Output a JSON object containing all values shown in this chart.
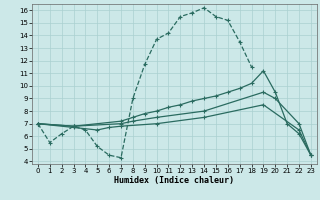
{
  "xlabel": "Humidex (Indice chaleur)",
  "bg_color": "#cce8e8",
  "line_color": "#2a6b60",
  "grid_color": "#aad0d0",
  "xlim": [
    -0.5,
    23.5
  ],
  "ylim": [
    3.8,
    16.5
  ],
  "xticks": [
    0,
    1,
    2,
    3,
    4,
    5,
    6,
    7,
    8,
    9,
    10,
    11,
    12,
    13,
    14,
    15,
    16,
    17,
    18,
    19,
    20,
    21,
    22,
    23
  ],
  "yticks": [
    4,
    5,
    6,
    7,
    8,
    9,
    10,
    11,
    12,
    13,
    14,
    15,
    16
  ],
  "line1_x": [
    0,
    1,
    2,
    3,
    4,
    5,
    6,
    7,
    8,
    9,
    10,
    11,
    12,
    13,
    14,
    15,
    16,
    17,
    18
  ],
  "line1_y": [
    7.0,
    5.5,
    6.2,
    6.8,
    6.5,
    5.2,
    4.5,
    4.3,
    9.0,
    11.7,
    13.7,
    14.2,
    15.5,
    15.8,
    16.2,
    15.5,
    15.2,
    13.5,
    11.5
  ],
  "line2_x": [
    0,
    3,
    7,
    8,
    9,
    10,
    11,
    12,
    13,
    14,
    15,
    16,
    17,
    18,
    19,
    20,
    21,
    22,
    23
  ],
  "line2_y": [
    7.0,
    6.8,
    7.2,
    7.5,
    7.8,
    8.0,
    8.3,
    8.5,
    8.8,
    9.0,
    9.2,
    9.5,
    9.8,
    10.2,
    11.2,
    9.5,
    7.0,
    6.2,
    4.5
  ],
  "line3_x": [
    0,
    3,
    7,
    8,
    10,
    14,
    19,
    20,
    22,
    23
  ],
  "line3_y": [
    7.0,
    6.8,
    7.0,
    7.2,
    7.5,
    8.0,
    9.5,
    9.0,
    7.0,
    4.5
  ],
  "line4_x": [
    0,
    3,
    5,
    6,
    7,
    10,
    14,
    19,
    22,
    23
  ],
  "line4_y": [
    7.0,
    6.7,
    6.5,
    6.7,
    6.8,
    7.0,
    7.5,
    8.5,
    6.5,
    4.5
  ]
}
